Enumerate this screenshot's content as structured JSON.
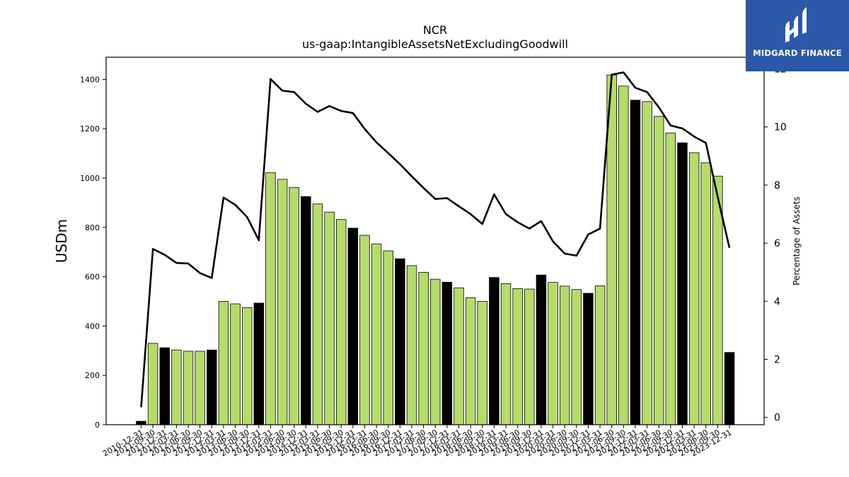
{
  "branding": {
    "logo_text": "MIDGARD FINANCE",
    "logo_color": "#2b58a8"
  },
  "chart_data": {
    "type": "bar",
    "title": "NCR",
    "subtitle": "us-gaap:IntangibleAssetsNetExcludingGoodwill",
    "ylabel": "USDm",
    "y2label": "Percentage of Assets",
    "ylim": [
      0,
      1490
    ],
    "y2lim": [
      -0.25,
      12.4
    ],
    "yticks": [
      0,
      200,
      400,
      600,
      800,
      1000,
      1200,
      1400
    ],
    "y2ticks": [
      0,
      2,
      4,
      6,
      8,
      10,
      12
    ],
    "grid": false,
    "legend": "none",
    "bar_colors": {
      "quarter": "#b5dc6a",
      "year_end": "#000000"
    },
    "line_color": "#000000",
    "categories": [
      "2010-12-31",
      "2011-09-30",
      "2011-12-31",
      "2012-03-31",
      "2012-06-30",
      "2012-09-30",
      "2012-12-31",
      "2013-03-31",
      "2013-06-30",
      "2013-09-30",
      "2013-12-31",
      "2014-03-31",
      "2014-06-30",
      "2014-09-30",
      "2014-12-31",
      "2015-03-31",
      "2015-06-30",
      "2015-09-30",
      "2015-12-31",
      "2016-03-31",
      "2016-06-30",
      "2016-09-30",
      "2016-12-31",
      "2017-03-31",
      "2017-06-30",
      "2017-09-30",
      "2017-12-31",
      "2018-03-31",
      "2018-06-30",
      "2018-09-30",
      "2018-12-31",
      "2019-03-31",
      "2019-06-30",
      "2019-09-30",
      "2019-12-31",
      "2020-03-31",
      "2020-06-30",
      "2020-09-30",
      "2020-12-31",
      "2021-03-31",
      "2021-06-30",
      "2021-09-30",
      "2021-12-31",
      "2022-03-31",
      "2022-06-30",
      "2022-09-30",
      "2022-12-31",
      "2023-03-31",
      "2023-06-30",
      "2023-09-30",
      "2023-12-31"
    ],
    "series": [
      {
        "kind": "bar",
        "axis": "left",
        "values": [
          14,
          330,
          312,
          303,
          298,
          298,
          303,
          500,
          490,
          475,
          493,
          1022,
          995,
          962,
          925,
          895,
          862,
          832,
          797,
          768,
          733,
          705,
          673,
          645,
          618,
          590,
          578,
          555,
          515,
          500,
          597,
          572,
          552,
          550,
          607,
          577,
          562,
          548,
          533,
          563,
          1418,
          1373,
          1316,
          1310,
          1250,
          1183,
          1143,
          1103,
          1062,
          1008,
          293
        ]
      },
      {
        "kind": "line",
        "axis": "right",
        "values": [
          0.35,
          5.8,
          5.6,
          5.32,
          5.3,
          4.97,
          4.8,
          7.57,
          7.32,
          6.9,
          6.1,
          11.65,
          11.25,
          11.2,
          10.8,
          10.52,
          10.72,
          10.55,
          10.48,
          9.93,
          9.47,
          9.1,
          8.72,
          8.3,
          7.9,
          7.52,
          7.55,
          7.27,
          7.0,
          6.66,
          7.68,
          7.0,
          6.72,
          6.5,
          6.76,
          6.06,
          5.64,
          5.57,
          6.3,
          6.5,
          11.8,
          11.88,
          11.35,
          11.2,
          10.68,
          10.05,
          9.95,
          9.67,
          9.45,
          7.6,
          5.84
        ]
      }
    ]
  }
}
